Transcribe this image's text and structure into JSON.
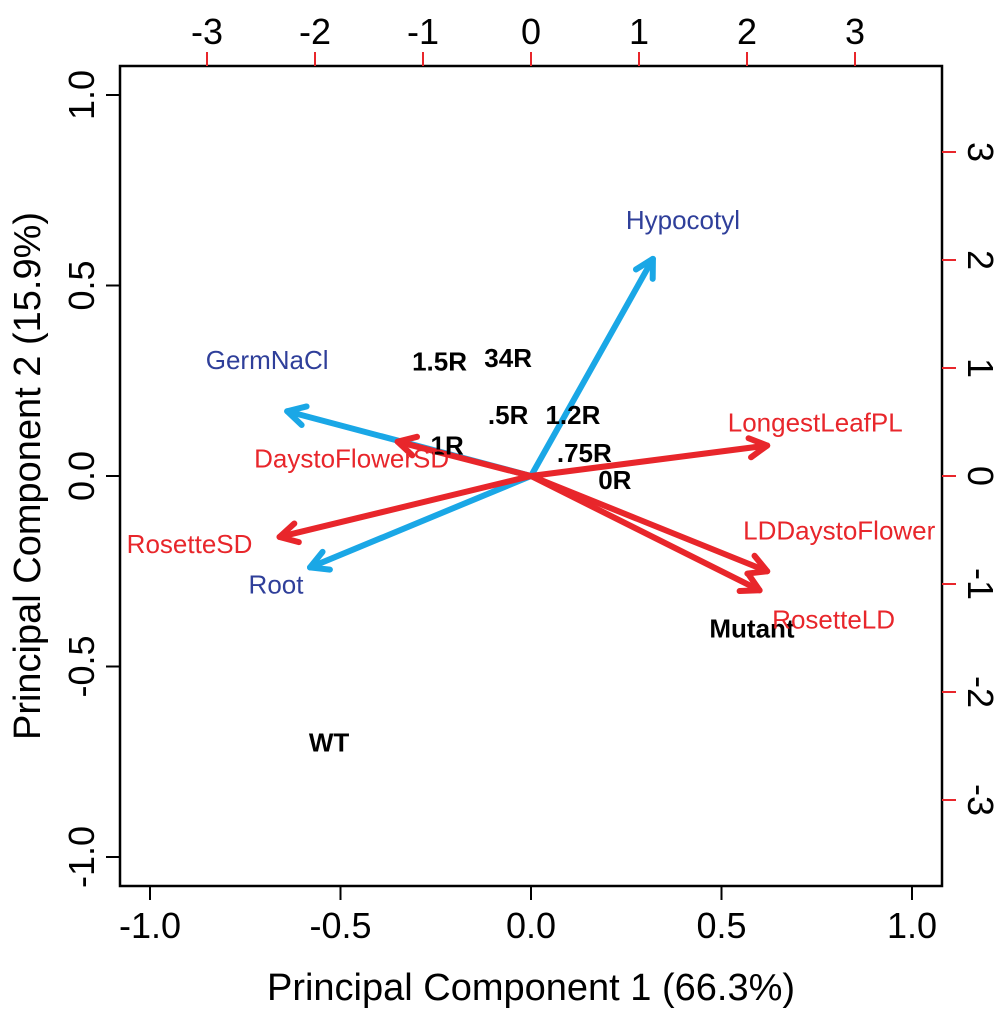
{
  "chart_data": {
    "type": "biplot",
    "xlabel": "Principal Component 1 (66.3%)",
    "ylabel": "Principal Component 2 (15.9%)",
    "xlim": [
      -1.0,
      1.0
    ],
    "ylim": [
      -1.0,
      1.0
    ],
    "bottom_ticks": [
      "-1.0",
      "-0.5",
      "0.0",
      "0.5",
      "1.0"
    ],
    "left_ticks": [
      "-1.0",
      "-0.5",
      "0.0",
      "0.5",
      "1.0"
    ],
    "top_ticks": [
      "-3",
      "-2",
      "-1",
      "0",
      "1",
      "2",
      "3"
    ],
    "right_ticks": [
      "-3",
      "-2",
      "-1",
      "0",
      "1",
      "2",
      "3"
    ],
    "secondary_axis_color": "#e8262b",
    "observations": [
      {
        "label": "1.5R",
        "x": -0.24,
        "y": 0.3
      },
      {
        "label": "34R",
        "x": -0.06,
        "y": 0.31
      },
      {
        "label": ".5R",
        "x": -0.06,
        "y": 0.16
      },
      {
        "label": "1.2R",
        "x": 0.11,
        "y": 0.16
      },
      {
        "label": "1R",
        "x": -0.22,
        "y": 0.08
      },
      {
        "label": ".75R",
        "x": 0.14,
        "y": 0.06
      },
      {
        "label": "0R",
        "x": 0.22,
        "y": -0.01
      },
      {
        "label": "Mutant",
        "x": 0.58,
        "y": -0.4
      },
      {
        "label": "WT",
        "x": -0.53,
        "y": -0.7
      }
    ],
    "loadings": [
      {
        "label": "Hypocotyl",
        "x": 0.32,
        "y": 0.57,
        "color": "#1aa7e6",
        "label_color": "#2f3f9a"
      },
      {
        "label": "GermNaCl",
        "x": -0.64,
        "y": 0.17,
        "color": "#1aa7e6",
        "label_color": "#2f3f9a"
      },
      {
        "label": "Root",
        "x": -0.58,
        "y": -0.24,
        "color": "#1aa7e6",
        "label_color": "#2f3f9a"
      },
      {
        "label": "DaystoFlowerSD",
        "x": -0.35,
        "y": 0.09,
        "color": "#e8262b",
        "label_color": "#e8262b"
      },
      {
        "label": "RosetteSD",
        "x": -0.66,
        "y": -0.16,
        "color": "#e8262b",
        "label_color": "#e8262b"
      },
      {
        "label": "LongestLeafPL",
        "x": 0.62,
        "y": 0.08,
        "color": "#e8262b",
        "label_color": "#e8262b"
      },
      {
        "label": "LDDaystoFlower",
        "x": 0.62,
        "y": -0.25,
        "color": "#e8262b",
        "label_color": "#e8262b"
      },
      {
        "label": "RosetteLD",
        "x": 0.6,
        "y": -0.3,
        "color": "#e8262b",
        "label_color": "#e8262b"
      }
    ]
  }
}
